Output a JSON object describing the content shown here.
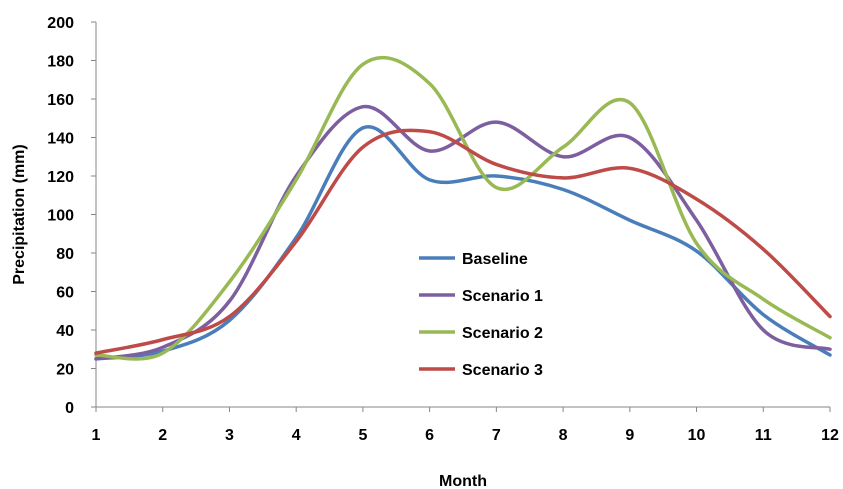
{
  "chart_data": {
    "type": "line",
    "title": "",
    "xlabel": "Month",
    "ylabel": "Precipitation (mm)",
    "x": [
      1,
      2,
      3,
      4,
      5,
      6,
      7,
      8,
      9,
      10,
      11,
      12
    ],
    "xlim": [
      1,
      12
    ],
    "ylim": [
      0,
      200
    ],
    "yticks": [
      0,
      20,
      40,
      60,
      80,
      100,
      120,
      140,
      160,
      180,
      200
    ],
    "grid": false,
    "smooth": true,
    "legend_position": "center",
    "series": [
      {
        "name": "Baseline",
        "color": "#4a7ebb",
        "values": [
          25,
          29,
          45,
          88,
          145,
          118,
          120,
          113,
          97,
          81,
          48,
          27
        ]
      },
      {
        "name": "Scenario 1",
        "color": "#7d5fa0",
        "values": [
          25,
          31,
          55,
          120,
          156,
          133,
          148,
          130,
          140,
          97,
          40,
          30
        ]
      },
      {
        "name": "Scenario 2",
        "color": "#98b954",
        "values": [
          27,
          28,
          65,
          118,
          178,
          168,
          114,
          135,
          158,
          85,
          56,
          36
        ]
      },
      {
        "name": "Scenario 3",
        "color": "#be4b48",
        "values": [
          28,
          35,
          47,
          86,
          135,
          143,
          126,
          119,
          124,
          108,
          82,
          47
        ]
      }
    ]
  }
}
